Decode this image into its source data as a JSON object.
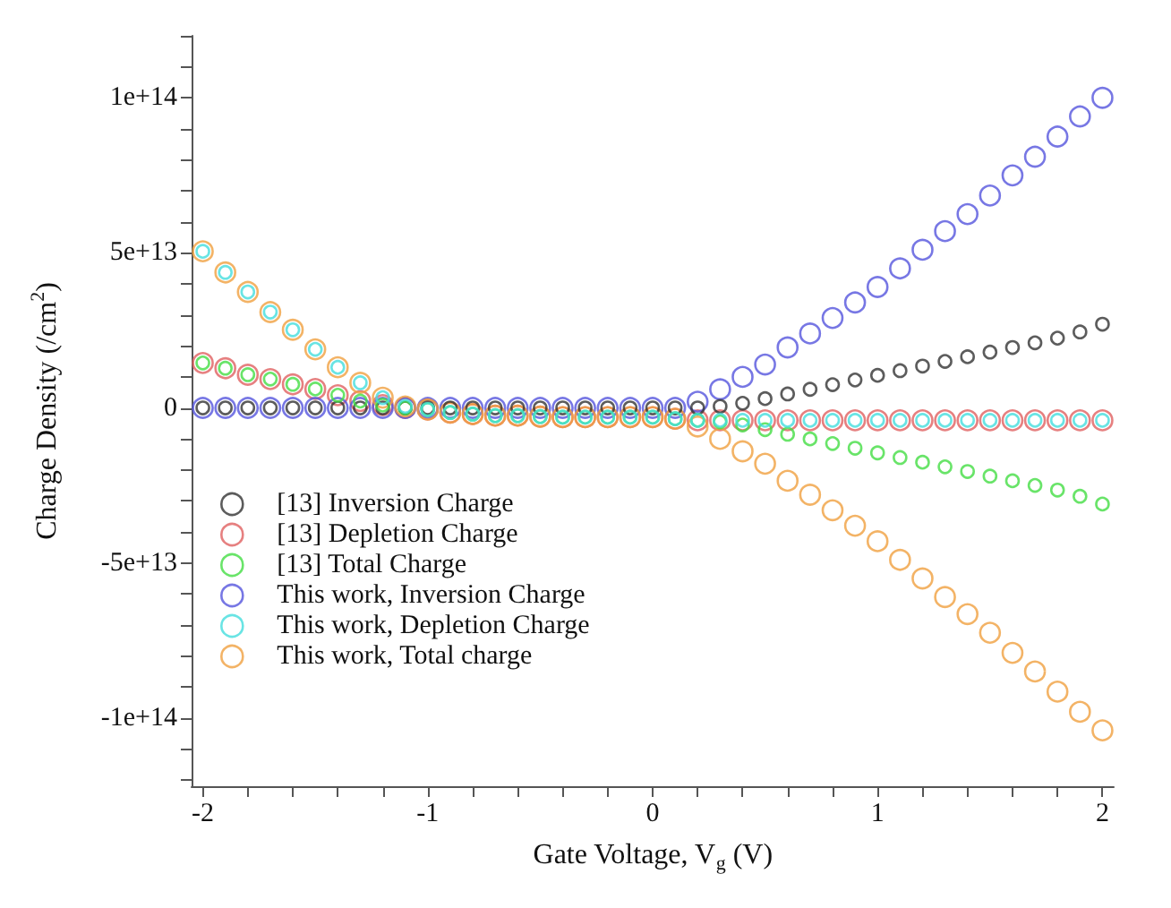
{
  "chart_data": {
    "type": "scatter",
    "xlabel": "Gate Voltage, V$_{g}$ (V)",
    "ylabel": "Charge Density (/cm$^{2}$)",
    "x": [
      -2,
      -1.9,
      -1.8,
      -1.7,
      -1.6,
      -1.5,
      -1.4,
      -1.3,
      -1.2,
      -1.1,
      -1,
      -0.9,
      -0.8,
      -0.7,
      -0.6,
      -0.5,
      -0.4,
      -0.3,
      -0.2,
      -0.1,
      0,
      0.1,
      0.2,
      0.3,
      0.4,
      0.5,
      0.6,
      0.7,
      0.8,
      0.9,
      1,
      1.1,
      1.2,
      1.3,
      1.4,
      1.5,
      1.6,
      1.7,
      1.8,
      1.9,
      2
    ],
    "series": [
      {
        "name": "[13] Inversion Charge",
        "color": "#333333",
        "values": [
          0,
          0,
          0,
          0,
          0,
          0,
          0,
          0,
          0,
          0,
          0,
          0,
          0,
          0,
          0,
          0,
          0,
          0,
          0,
          0,
          0,
          0,
          0,
          500000000000.0,
          1500000000000.0,
          3000000000000.0,
          4500000000000.0,
          6000000000000.0,
          7500000000000.0,
          9000000000000.0,
          10500000000000.0,
          12000000000000.0,
          13500000000000.0,
          15000000000000.0,
          16500000000000.0,
          18000000000000.0,
          19500000000000.0,
          21000000000000.0,
          22500000000000.0,
          24500000000000.0,
          27000000000000.0
        ]
      },
      {
        "name": "[13] Depletion Charge",
        "color": "#e06060",
        "values": [
          14500000000000.0,
          12800000000000.0,
          10700000000000.0,
          9300000000000.0,
          7600000000000.0,
          6100000000000.0,
          4100000000000.0,
          2200000000000.0,
          900000000000.0,
          0,
          -500000000000.0,
          -1500000000000.0,
          -2000000000000.0,
          -2500000000000.0,
          -2500000000000.0,
          -2800000000000.0,
          -3000000000000.0,
          -3000000000000.0,
          -3000000000000.0,
          -3000000000000.0,
          -3000000000000.0,
          -3500000000000.0,
          -4000000000000.0,
          -4000000000000.0,
          -4000000000000.0,
          -4000000000000.0,
          -4000000000000.0,
          -4000000000000.0,
          -4000000000000.0,
          -4000000000000.0,
          -4000000000000.0,
          -4000000000000.0,
          -4000000000000.0,
          -4000000000000.0,
          -4000000000000.0,
          -4000000000000.0,
          -4000000000000.0,
          -4000000000000.0,
          -4000000000000.0,
          -4000000000000.0,
          -4000000000000.0
        ]
      },
      {
        "name": "[13] Total Charge",
        "color": "#44dd44",
        "values": [
          14500000000000.0,
          12800000000000.0,
          10700000000000.0,
          9300000000000.0,
          7600000000000.0,
          6100000000000.0,
          4100000000000.0,
          2200000000000.0,
          900000000000.0,
          0,
          -500000000000.0,
          -1500000000000.0,
          -2000000000000.0,
          -2500000000000.0,
          -2500000000000.0,
          -2800000000000.0,
          -3000000000000.0,
          -3000000000000.0,
          -3000000000000.0,
          -3000000000000.0,
          -3000000000000.0,
          -3500000000000.0,
          -4000000000000.0,
          -4500000000000.0,
          -5500000000000.0,
          -7000000000000.0,
          -8500000000000.0,
          -10000000000000.0,
          -11500000000000.0,
          -13000000000000.0,
          -14500000000000.0,
          -16000000000000.0,
          -17500000000000.0,
          -19000000000000.0,
          -20500000000000.0,
          -22000000000000.0,
          -23500000000000.0,
          -25000000000000.0,
          -26500000000000.0,
          -28500000000000.0,
          -31000000000000.0
        ]
      },
      {
        "name": "This work, Inversion Charge",
        "color": "#5555dd",
        "values": [
          0,
          0,
          0,
          0,
          0,
          0,
          0,
          0,
          0,
          0,
          0,
          0,
          0,
          0,
          0,
          0,
          0,
          0,
          0,
          0,
          0,
          0,
          2000000000000.0,
          6000000000000.0,
          10000000000000.0,
          14000000000000.0,
          19500000000000.0,
          24000000000000.0,
          29000000000000.0,
          34000000000000.0,
          39000000000000.0,
          45000000000000.0,
          51000000000000.0,
          57000000000000.0,
          62500000000000.0,
          68500000000000.0,
          75000000000000.0,
          81000000000000.0,
          87500000000000.0,
          94000000000000.0,
          100000000000000.0
        ]
      },
      {
        "name": "This work, Depletion Charge",
        "color": "#44dddd",
        "values": [
          50500000000000.0,
          43700000000000.0,
          37400000000000.0,
          30900000000000.0,
          25200000000000.0,
          18900000000000.0,
          13100000000000.0,
          8100000000000.0,
          3300000000000.0,
          500000000000.0,
          -500000000000.0,
          -1500000000000.0,
          -2000000000000.0,
          -2500000000000.0,
          -2500000000000.0,
          -2800000000000.0,
          -3000000000000.0,
          -3000000000000.0,
          -3000000000000.0,
          -3000000000000.0,
          -3000000000000.0,
          -3500000000000.0,
          -4000000000000.0,
          -4000000000000.0,
          -4000000000000.0,
          -4000000000000.0,
          -4000000000000.0,
          -4000000000000.0,
          -4000000000000.0,
          -4000000000000.0,
          -4000000000000.0,
          -4000000000000.0,
          -4000000000000.0,
          -4000000000000.0,
          -4000000000000.0,
          -4000000000000.0,
          -4000000000000.0,
          -4000000000000.0,
          -4000000000000.0,
          -4000000000000.0,
          -4000000000000.0
        ]
      },
      {
        "name": "This work, Total charge",
        "color": "#f0a040",
        "values": [
          50500000000000.0,
          43700000000000.0,
          37400000000000.0,
          30900000000000.0,
          25200000000000.0,
          18900000000000.0,
          13100000000000.0,
          8100000000000.0,
          3300000000000.0,
          500000000000.0,
          -500000000000.0,
          -1500000000000.0,
          -2000000000000.0,
          -2500000000000.0,
          -2500000000000.0,
          -2800000000000.0,
          -3000000000000.0,
          -3000000000000.0,
          -3000000000000.0,
          -3000000000000.0,
          -3000000000000.0,
          -3500000000000.0,
          -6000000000000.0,
          -10000000000000.0,
          -14000000000000.0,
          -18000000000000.0,
          -23500000000000.0,
          -28000000000000.0,
          -33000000000000.0,
          -38000000000000.0,
          -43000000000000.0,
          -49000000000000.0,
          -55000000000000.0,
          -61000000000000.0,
          -66500000000000.0,
          -72500000000000.0,
          -79000000000000.0,
          -85000000000000.0,
          -91500000000000.0,
          -98000000000000.0,
          -104000000000000.0
        ]
      }
    ],
    "xlim": [
      -2.05,
      2.05
    ],
    "xticks": [
      -2,
      {
        "value": -1.8,
        "label": null
      },
      {
        "value": -1.6,
        "label": null
      },
      {
        "value": -1.4,
        "label": null
      },
      {
        "value": -1.2,
        "label": null
      },
      -1,
      {
        "value": -0.8,
        "label": null
      },
      {
        "value": -0.6,
        "label": null
      },
      {
        "value": -0.4,
        "label": null
      },
      {
        "value": -0.2,
        "label": null
      },
      0,
      {
        "value": 0.2,
        "label": null
      },
      {
        "value": 0.4,
        "label": null
      },
      {
        "value": 0.6,
        "label": null
      },
      {
        "value": 0.8,
        "label": null
      },
      1,
      {
        "value": 1.2,
        "label": null
      },
      {
        "value": 1.4,
        "label": null
      },
      {
        "value": 1.6,
        "label": null
      },
      {
        "value": 1.8,
        "label": null
      },
      2
    ],
    "ylim": [
      -122000000000000.0,
      120000000000000.0
    ],
    "yticks": [
      {
        "value": -120000000000000.0,
        "label": null
      },
      {
        "value": -110000000000000.0,
        "label": null
      },
      {
        "value": -100000000000000.0,
        "label": "-1e+14"
      },
      {
        "value": -90000000000000.0,
        "label": null
      },
      {
        "value": -80000000000000.0,
        "label": null
      },
      {
        "value": -70000000000000.0,
        "label": null
      },
      {
        "value": -60000000000000.0,
        "label": null
      },
      {
        "value": -50000000000000.0,
        "label": "-5e+13"
      },
      {
        "value": -40000000000000.0,
        "label": null
      },
      {
        "value": -30000000000000.0,
        "label": null
      },
      {
        "value": -20000000000000.0,
        "label": null
      },
      {
        "value": -10000000000000.0,
        "label": null
      },
      0,
      {
        "value": 10000000000000.0,
        "label": null
      },
      {
        "value": 20000000000000.0,
        "label": null
      },
      {
        "value": 30000000000000.0,
        "label": null
      },
      {
        "value": 40000000000000.0,
        "label": null
      },
      {
        "value": 50000000000000.0,
        "label": "5e+13"
      },
      {
        "value": 60000000000000.0,
        "label": null
      },
      {
        "value": 70000000000000.0,
        "label": null
      },
      {
        "value": 80000000000000.0,
        "label": null
      },
      {
        "value": 90000000000000.0,
        "label": null
      },
      {
        "value": 100000000000000.0,
        "label": "1e+14"
      },
      {
        "value": 110000000000000.0,
        "label": null
      },
      {
        "value": 120000000000000.0,
        "label": null
      }
    ],
    "grid": false,
    "legend": "bottom left",
    "marker": "circle"
  }
}
